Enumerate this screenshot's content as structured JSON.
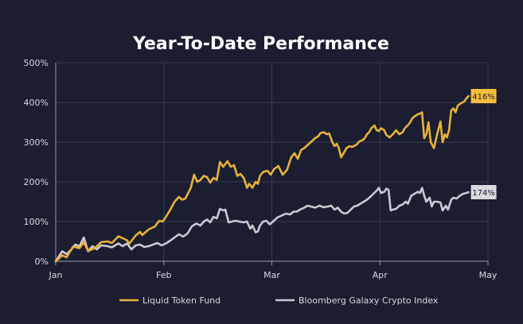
{
  "chart_data": {
    "type": "line",
    "title": "Year-To-Date Performance",
    "xlabel": "",
    "ylabel": "",
    "x_ticks": [
      "Jan",
      "Feb",
      "Mar",
      "Apr",
      "May"
    ],
    "x_range": [
      0,
      4
    ],
    "y_ticks": [
      "0%",
      "100%",
      "200%",
      "300%",
      "400%",
      "500%"
    ],
    "ylim": [
      0,
      500
    ],
    "grid": true,
    "legend_position": "bottom",
    "colors": {
      "background": "#1b1d30",
      "grid": "#383b52",
      "axis": "#9a9cab",
      "text": "#ffffff",
      "tick_text": "#d8d9e0"
    },
    "series": [
      {
        "name": "Liquid Token Fund",
        "color": "#e8b23a",
        "end_label": "416%",
        "label_bg": "#f5be3c",
        "label_fg": "#1b1d30",
        "points": [
          [
            0,
            0
          ],
          [
            0.06,
            15
          ],
          [
            0.1,
            10
          ],
          [
            0.16,
            37
          ],
          [
            0.22,
            33
          ],
          [
            0.26,
            48
          ],
          [
            0.3,
            26
          ],
          [
            0.36,
            33
          ],
          [
            0.42,
            48
          ],
          [
            0.48,
            50
          ],
          [
            0.52,
            46
          ],
          [
            0.56,
            57
          ],
          [
            0.58,
            63
          ],
          [
            0.62,
            58
          ],
          [
            0.66,
            53
          ],
          [
            0.68,
            44
          ],
          [
            0.74,
            65
          ],
          [
            0.78,
            74
          ],
          [
            0.8,
            66
          ],
          [
            0.86,
            80
          ],
          [
            0.92,
            88
          ],
          [
            0.94,
            96
          ],
          [
            0.96,
            102
          ],
          [
            0.99,
            100
          ],
          [
            1.02,
            112
          ],
          [
            1.06,
            130
          ],
          [
            1.1,
            150
          ],
          [
            1.14,
            162
          ],
          [
            1.17,
            155
          ],
          [
            1.2,
            158
          ],
          [
            1.25,
            185
          ],
          [
            1.28,
            218
          ],
          [
            1.31,
            200
          ],
          [
            1.34,
            205
          ],
          [
            1.37,
            215
          ],
          [
            1.4,
            212
          ],
          [
            1.43,
            198
          ],
          [
            1.46,
            210
          ],
          [
            1.49,
            205
          ],
          [
            1.52,
            250
          ],
          [
            1.55,
            238
          ],
          [
            1.57,
            245
          ],
          [
            1.59,
            252
          ],
          [
            1.62,
            238
          ],
          [
            1.65,
            242
          ],
          [
            1.68,
            215
          ],
          [
            1.71,
            220
          ],
          [
            1.74,
            210
          ],
          [
            1.77,
            185
          ],
          [
            1.79,
            195
          ],
          [
            1.82,
            185
          ],
          [
            1.85,
            200
          ],
          [
            1.87,
            195
          ],
          [
            1.89,
            215
          ],
          [
            1.92,
            225
          ],
          [
            1.96,
            228
          ],
          [
            1.99,
            218
          ],
          [
            2.02,
            232
          ],
          [
            2.06,
            240
          ],
          [
            2.1,
            218
          ],
          [
            2.14,
            230
          ],
          [
            2.18,
            262
          ],
          [
            2.21,
            272
          ],
          [
            2.24,
            258
          ],
          [
            2.27,
            280
          ],
          [
            2.3,
            285
          ],
          [
            2.34,
            295
          ],
          [
            2.38,
            305
          ],
          [
            2.4,
            310
          ],
          [
            2.43,
            315
          ],
          [
            2.45,
            323
          ],
          [
            2.48,
            325
          ],
          [
            2.51,
            320
          ],
          [
            2.53,
            322
          ],
          [
            2.56,
            300
          ],
          [
            2.58,
            290
          ],
          [
            2.6,
            296
          ],
          [
            2.62,
            285
          ],
          [
            2.64,
            262
          ],
          [
            2.67,
            275
          ],
          [
            2.69,
            285
          ],
          [
            2.72,
            290
          ],
          [
            2.74,
            288
          ],
          [
            2.76,
            290
          ],
          [
            2.79,
            295
          ],
          [
            2.81,
            302
          ],
          [
            2.84,
            305
          ],
          [
            2.86,
            310
          ],
          [
            2.88,
            320
          ],
          [
            2.9,
            325
          ],
          [
            2.92,
            335
          ],
          [
            2.95,
            342
          ],
          [
            2.97,
            330
          ],
          [
            2.99,
            328
          ],
          [
            3.01,
            335
          ],
          [
            3.04,
            330
          ],
          [
            3.06,
            318
          ],
          [
            3.09,
            312
          ],
          [
            3.12,
            320
          ],
          [
            3.15,
            330
          ],
          [
            3.18,
            320
          ],
          [
            3.21,
            325
          ],
          [
            3.23,
            335
          ],
          [
            3.26,
            343
          ],
          [
            3.28,
            350
          ],
          [
            3.3,
            360
          ],
          [
            3.32,
            365
          ],
          [
            3.35,
            370
          ],
          [
            3.37,
            372
          ],
          [
            3.39,
            375
          ],
          [
            3.41,
            310
          ],
          [
            3.43,
            320
          ],
          [
            3.45,
            350
          ],
          [
            3.47,
            300
          ],
          [
            3.5,
            285
          ],
          [
            3.53,
            320
          ],
          [
            3.56,
            352
          ],
          [
            3.58,
            300
          ],
          [
            3.6,
            320
          ],
          [
            3.62,
            312
          ],
          [
            3.64,
            330
          ],
          [
            3.66,
            380
          ],
          [
            3.68,
            385
          ],
          [
            3.7,
            375
          ],
          [
            3.72,
            392
          ],
          [
            3.75,
            398
          ],
          [
            3.78,
            402
          ],
          [
            3.8,
            410
          ],
          [
            3.82,
            416
          ]
        ]
      },
      {
        "name": "Bloomberg Galaxy Crypto Index",
        "color": "#c9cad2",
        "end_label": "174%",
        "label_bg": "#d9d9de",
        "label_fg": "#1b1d30",
        "points": [
          [
            0,
            0
          ],
          [
            0.06,
            25
          ],
          [
            0.1,
            18
          ],
          [
            0.14,
            28
          ],
          [
            0.18,
            42
          ],
          [
            0.22,
            38
          ],
          [
            0.26,
            60
          ],
          [
            0.3,
            25
          ],
          [
            0.34,
            38
          ],
          [
            0.38,
            30
          ],
          [
            0.42,
            40
          ],
          [
            0.48,
            38
          ],
          [
            0.52,
            35
          ],
          [
            0.58,
            45
          ],
          [
            0.62,
            38
          ],
          [
            0.66,
            45
          ],
          [
            0.7,
            30
          ],
          [
            0.74,
            40
          ],
          [
            0.78,
            42
          ],
          [
            0.82,
            36
          ],
          [
            0.86,
            38
          ],
          [
            0.9,
            42
          ],
          [
            0.94,
            46
          ],
          [
            0.98,
            40
          ],
          [
            1.02,
            45
          ],
          [
            1.06,
            52
          ],
          [
            1.1,
            60
          ],
          [
            1.14,
            68
          ],
          [
            1.18,
            62
          ],
          [
            1.22,
            70
          ],
          [
            1.26,
            88
          ],
          [
            1.3,
            95
          ],
          [
            1.34,
            90
          ],
          [
            1.37,
            100
          ],
          [
            1.4,
            105
          ],
          [
            1.43,
            98
          ],
          [
            1.46,
            112
          ],
          [
            1.49,
            108
          ],
          [
            1.52,
            132
          ],
          [
            1.55,
            128
          ],
          [
            1.57,
            130
          ],
          [
            1.6,
            98
          ],
          [
            1.63,
            100
          ],
          [
            1.66,
            102
          ],
          [
            1.7,
            100
          ],
          [
            1.74,
            98
          ],
          [
            1.77,
            100
          ],
          [
            1.8,
            82
          ],
          [
            1.82,
            90
          ],
          [
            1.85,
            73
          ],
          [
            1.87,
            75
          ],
          [
            1.89,
            90
          ],
          [
            1.92,
            100
          ],
          [
            1.95,
            102
          ],
          [
            1.98,
            93
          ],
          [
            2.01,
            100
          ],
          [
            2.05,
            110
          ],
          [
            2.09,
            115
          ],
          [
            2.13,
            120
          ],
          [
            2.17,
            118
          ],
          [
            2.2,
            125
          ],
          [
            2.23,
            125
          ],
          [
            2.26,
            130
          ],
          [
            2.3,
            135
          ],
          [
            2.33,
            140
          ],
          [
            2.36,
            138
          ],
          [
            2.4,
            135
          ],
          [
            2.44,
            140
          ],
          [
            2.48,
            136
          ],
          [
            2.52,
            138
          ],
          [
            2.55,
            140
          ],
          [
            2.58,
            130
          ],
          [
            2.61,
            135
          ],
          [
            2.64,
            125
          ],
          [
            2.67,
            120
          ],
          [
            2.7,
            122
          ],
          [
            2.73,
            130
          ],
          [
            2.76,
            138
          ],
          [
            2.79,
            140
          ],
          [
            2.82,
            145
          ],
          [
            2.85,
            150
          ],
          [
            2.88,
            155
          ],
          [
            2.91,
            162
          ],
          [
            2.94,
            170
          ],
          [
            2.97,
            178
          ],
          [
            2.99,
            185
          ],
          [
            3.01,
            172
          ],
          [
            3.04,
            175
          ],
          [
            3.06,
            183
          ],
          [
            3.08,
            180
          ],
          [
            3.1,
            128
          ],
          [
            3.12,
            130
          ],
          [
            3.15,
            132
          ],
          [
            3.18,
            140
          ],
          [
            3.21,
            143
          ],
          [
            3.24,
            150
          ],
          [
            3.26,
            145
          ],
          [
            3.29,
            165
          ],
          [
            3.32,
            170
          ],
          [
            3.35,
            175
          ],
          [
            3.37,
            172
          ],
          [
            3.39,
            185
          ],
          [
            3.41,
            165
          ],
          [
            3.43,
            150
          ],
          [
            3.46,
            160
          ],
          [
            3.48,
            138
          ],
          [
            3.5,
            150
          ],
          [
            3.53,
            150
          ],
          [
            3.56,
            148
          ],
          [
            3.58,
            128
          ],
          [
            3.61,
            140
          ],
          [
            3.63,
            130
          ],
          [
            3.66,
            155
          ],
          [
            3.68,
            160
          ],
          [
            3.71,
            158
          ],
          [
            3.74,
            165
          ],
          [
            3.77,
            170
          ],
          [
            3.8,
            172
          ],
          [
            3.82,
            174
          ]
        ]
      }
    ]
  }
}
